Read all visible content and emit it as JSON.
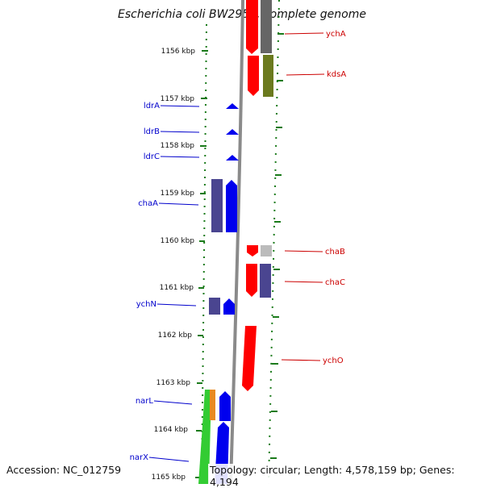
{
  "title": "Escherichia coli BW2952, complete genome",
  "accession_text": "Accession: NC_012759",
  "topology_text": "Topology: circular; Length: 4,578,159 bp; Genes: 4,194",
  "colors": {
    "forward_label": "#0000cc",
    "reverse_label": "#cc0000",
    "forward_gene": "#0000ee",
    "reverse_gene": "#ff0000",
    "tick": "#1a7a1a",
    "backbone": "#888888"
  },
  "ruler": [
    {
      "label": "1156 kbp"
    },
    {
      "label": "1157 kbp"
    },
    {
      "label": "1158 kbp"
    },
    {
      "label": "1159 kbp"
    },
    {
      "label": "1160 kbp"
    },
    {
      "label": "1161 kbp"
    },
    {
      "label": "1162 kbp"
    },
    {
      "label": "1163 kbp"
    },
    {
      "label": "1164 kbp"
    },
    {
      "label": "1165 kbp"
    }
  ],
  "forward_genes": [
    {
      "name": "ldrA"
    },
    {
      "name": "ldrB"
    },
    {
      "name": "ldrC"
    },
    {
      "name": "chaA"
    },
    {
      "name": "ychN"
    },
    {
      "name": "narL"
    },
    {
      "name": "narX"
    }
  ],
  "reverse_genes": [
    {
      "name": "ychA"
    },
    {
      "name": "kdsA"
    },
    {
      "name": "chaB"
    },
    {
      "name": "chaC"
    },
    {
      "name": "ychO"
    }
  ]
}
